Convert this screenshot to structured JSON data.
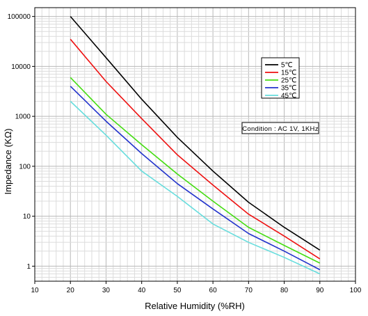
{
  "chart_data": {
    "type": "line",
    "xlabel": "Relative Humidity (%RH)",
    "ylabel": "Impedance (KΩ)",
    "xlim": [
      10,
      100
    ],
    "ylim": [
      0.5,
      150000
    ],
    "yscale": "log",
    "grid": true,
    "legend_position": "top-right",
    "x_ticks": [
      "10",
      "20",
      "30",
      "40",
      "50",
      "60",
      "70",
      "80",
      "90",
      "100"
    ],
    "y_ticks": [
      "1",
      "10",
      "100",
      "1000",
      "10000",
      "100000"
    ],
    "annotation": "Condition : AC 1V, 1KHz",
    "x": [
      20,
      30,
      40,
      50,
      60,
      70,
      80,
      90
    ],
    "series": [
      {
        "name": "5℃",
        "color": "#000000",
        "values": [
          100000,
          15000,
          2200,
          380,
          80,
          19,
          6,
          2.1
        ]
      },
      {
        "name": "15℃",
        "color": "#ee1111",
        "values": [
          35000,
          5000,
          900,
          170,
          42,
          11,
          4,
          1.4
        ]
      },
      {
        "name": "25℃",
        "color": "#44dd11",
        "values": [
          6000,
          1100,
          270,
          70,
          20,
          6,
          2.6,
          1.15
        ]
      },
      {
        "name": "35℃",
        "color": "#2233cc",
        "values": [
          4000,
          800,
          180,
          45,
          14,
          4.5,
          2.0,
          0.85
        ]
      },
      {
        "name": "45℃",
        "color": "#66dddd",
        "values": [
          2000,
          420,
          80,
          25,
          7,
          3,
          1.5,
          0.7
        ]
      }
    ]
  }
}
